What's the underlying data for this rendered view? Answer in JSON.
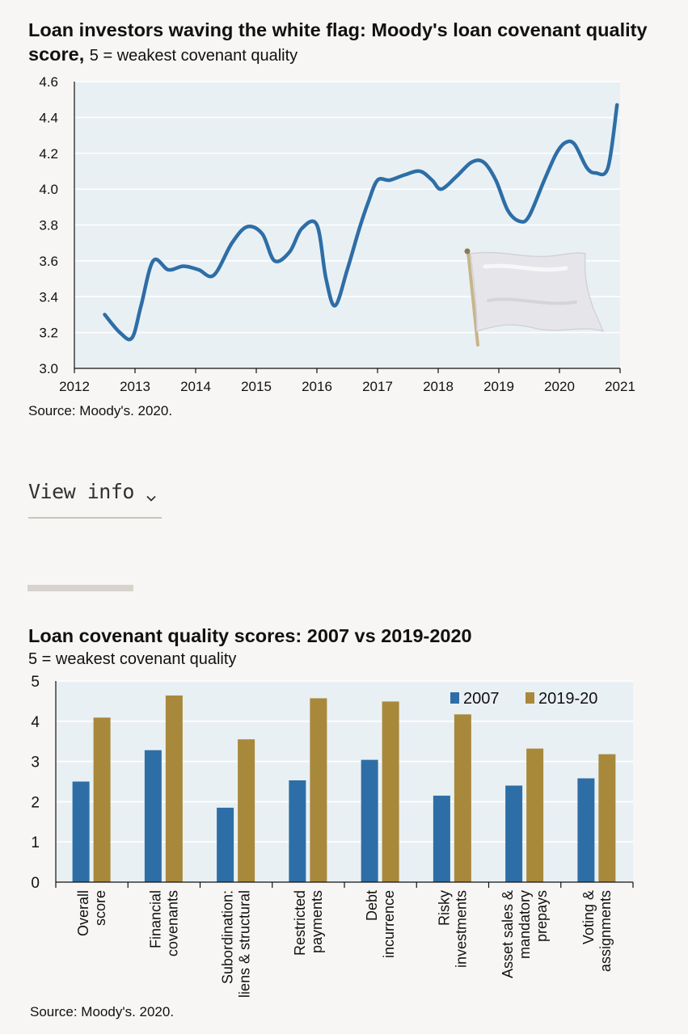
{
  "charts_text": {
    "chart1_title": "Loan investors waving the white flag: Moody's loan covenant quality score,",
    "chart1_subtitle": "5 = weakest covenant quality",
    "chart1_source": "Source: Moody's. 2020.",
    "view_info_label": "View info",
    "chart2_title": "Loan covenant quality scores: 2007 vs 2019-2020",
    "chart2_subtitle": "5 = weakest covenant quality",
    "chart2_source": "Source: Moody's. 2020."
  },
  "colors": {
    "plot_bg": "#e9f0f4",
    "line": "#2e6ea6",
    "bar_2007": "#2e6ea6",
    "bar_2019": "#a8883a"
  },
  "icons": {
    "flag": "white-flag-icon",
    "chevron": "chevron-down-icon"
  },
  "chart_data": [
    {
      "type": "line",
      "title": "Loan investors waving the white flag: Moody's loan covenant quality score,",
      "subtitle": "5 = weakest covenant quality",
      "xlabel": "",
      "ylabel": "",
      "xlim": [
        2012,
        2021
      ],
      "ylim": [
        3.0,
        4.6
      ],
      "x_ticks": [
        "2012",
        "2013",
        "2014",
        "2015",
        "2016",
        "2017",
        "2018",
        "2019",
        "2020",
        "2021"
      ],
      "y_ticks": [
        "3.0",
        "3.2",
        "3.4",
        "3.6",
        "3.8",
        "4.0",
        "4.2",
        "4.4",
        "4.6"
      ],
      "grid": true,
      "series": [
        {
          "x": [
            2012.5,
            2012.75,
            2012.95,
            2013.1,
            2013.3,
            2013.55,
            2013.8,
            2014.05,
            2014.3,
            2014.6,
            2014.85,
            2015.1,
            2015.3,
            2015.55,
            2015.75,
            2016.0,
            2016.15,
            2016.3,
            2016.5,
            2016.7,
            2016.85,
            2017.0,
            2017.2,
            2017.45,
            2017.7,
            2017.9,
            2018.05,
            2018.3,
            2018.55,
            2018.75,
            2018.95,
            2019.15,
            2019.35,
            2019.5,
            2019.75,
            2019.95,
            2020.1,
            2020.25,
            2020.45,
            2020.6,
            2020.8,
            2020.95
          ],
          "y": [
            3.3,
            3.2,
            3.17,
            3.35,
            3.6,
            3.55,
            3.57,
            3.55,
            3.52,
            3.7,
            3.79,
            3.75,
            3.6,
            3.65,
            3.78,
            3.8,
            3.5,
            3.35,
            3.55,
            3.78,
            3.93,
            4.05,
            4.05,
            4.08,
            4.1,
            4.05,
            4.0,
            4.07,
            4.15,
            4.15,
            4.05,
            3.88,
            3.82,
            3.85,
            4.05,
            4.2,
            4.26,
            4.25,
            4.12,
            4.09,
            4.12,
            4.47
          ]
        }
      ],
      "source": "Source: Moody's. 2020."
    },
    {
      "type": "bar",
      "title": "Loan covenant quality scores: 2007 vs 2019-2020",
      "subtitle": "5 = weakest covenant quality",
      "xlabel": "",
      "ylabel": "",
      "ylim": [
        0,
        5
      ],
      "y_ticks": [
        "0",
        "1",
        "2",
        "3",
        "4",
        "5"
      ],
      "grid": true,
      "legend": "top-right",
      "categories": [
        [
          "Overall",
          "score"
        ],
        [
          "Financial",
          "covenants"
        ],
        [
          "Subordination:",
          "liens & structural"
        ],
        [
          "Restricted",
          "payments"
        ],
        [
          "Debt",
          "incurrence"
        ],
        [
          "Risky",
          "investments"
        ],
        [
          "Asset sales &",
          "mandatory",
          "prepays"
        ],
        [
          "Voting &",
          "assignments"
        ]
      ],
      "series": [
        {
          "name": "2007",
          "values": [
            2.5,
            3.28,
            1.85,
            2.53,
            3.04,
            2.15,
            2.4,
            2.58
          ]
        },
        {
          "name": "2019-20",
          "values": [
            4.09,
            4.64,
            3.55,
            4.57,
            4.49,
            4.17,
            3.32,
            3.18
          ]
        }
      ],
      "source": "Source: Moody's. 2020."
    }
  ]
}
